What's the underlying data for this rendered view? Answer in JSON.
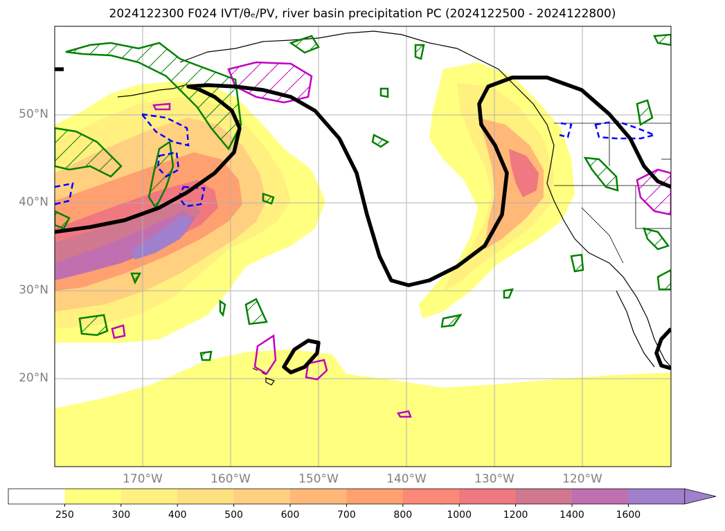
{
  "title": "2024122300 F024 IVT/θₑ/PV, river basin precipitation PC (2024122500 - 2024122800)",
  "map": {
    "lat_labels": [
      "50°N",
      "40°N",
      "30°N",
      "20°N"
    ],
    "lon_labels": [
      "170°W",
      "160°W",
      "150°W",
      "140°W",
      "130°W",
      "120°W"
    ],
    "ivt_fill_colors": [
      "#ffffff",
      "#ffff80",
      "#fff080",
      "#ffe080",
      "#ffd080",
      "#ffb878",
      "#ffa070",
      "#fc8878",
      "#f07880",
      "#d07890",
      "#c070b0",
      "#a080cc"
    ],
    "contour_colors": {
      "theta_e": "#000000",
      "pv_positive": "#008000",
      "pv_negative": "#0000ff",
      "precip": "#c000c0"
    }
  },
  "colorbar": {
    "ticks": [
      "250",
      "300",
      "400",
      "500",
      "600",
      "700",
      "800",
      "1000",
      "1200",
      "1400",
      "1600"
    ],
    "colors": [
      "#ffffff",
      "#ffff80",
      "#fff080",
      "#ffe080",
      "#ffd080",
      "#ffb878",
      "#ffa070",
      "#fc8878",
      "#f07880",
      "#d07890",
      "#c070b0",
      "#a080cc"
    ],
    "extend": "max"
  }
}
